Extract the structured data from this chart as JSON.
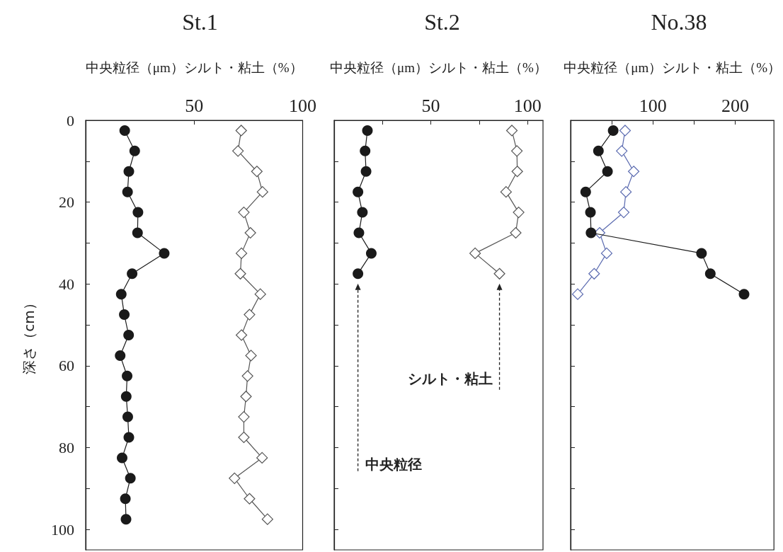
{
  "chart_data": [
    {
      "type": "line",
      "title": "St.1",
      "xlabel": "中央粒径（μm）シルト・粘土（%）",
      "ylabel": "深さ（cm）",
      "xlim": [
        0,
        100
      ],
      "xticks": [
        50,
        100
      ],
      "ylim": [
        105,
        0
      ],
      "yticks": [
        0,
        {
          "value": 10,
          "label": null
        },
        20,
        {
          "value": 30,
          "label": null
        },
        40,
        {
          "value": 50,
          "label": null
        },
        60,
        {
          "value": 70,
          "label": null
        },
        80,
        {
          "value": 90,
          "label": null
        },
        100
      ],
      "grid": false,
      "series": [
        {
          "color": "#1a1a1a",
          "marker": "circle",
          "x": [
            18.0,
            22.6,
            19.9,
            19.3,
            24.1,
            23.9,
            36.2,
            21.4,
            16.4,
            17.8,
            19.8,
            15.9,
            19.1,
            18.7,
            19.4,
            19.9,
            16.8,
            20.6,
            18.3,
            18.6
          ],
          "values": [
            2.5,
            7.5,
            12.5,
            17.5,
            22.5,
            27.5,
            32.5,
            37.5,
            42.5,
            47.5,
            52.5,
            57.5,
            62.5,
            67.5,
            72.5,
            77.5,
            82.5,
            87.5,
            92.5,
            97.5
          ]
        },
        {
          "color": "#555555",
          "marker": "diamond",
          "x": [
            71.7,
            70.2,
            78.9,
            81.5,
            72.9,
            75.9,
            71.8,
            71.3,
            80.5,
            75.5,
            71.8,
            76.2,
            74.6,
            73.9,
            72.9,
            72.9,
            81.3,
            68.6,
            75.5,
            83.8
          ],
          "values": [
            2.5,
            7.5,
            12.5,
            17.5,
            22.5,
            27.5,
            32.5,
            37.5,
            42.5,
            47.5,
            52.5,
            57.5,
            62.5,
            67.5,
            72.5,
            77.5,
            82.5,
            87.5,
            92.5,
            97.5
          ]
        }
      ]
    },
    {
      "type": "line",
      "title": "St.2",
      "xlabel": "中央粒径（μm）シルト・粘土（%）",
      "xlim": [
        0,
        108
      ],
      "xticks": [
        {
          "value": 25,
          "label": null
        },
        50,
        {
          "value": 75,
          "label": null
        },
        100
      ],
      "ylim": [
        105,
        0
      ],
      "yticks": [
        0,
        10,
        20,
        30,
        40,
        50,
        60,
        70,
        80,
        90,
        100
      ],
      "tick_labels": "x",
      "grid": false,
      "annotations": [
        "中央粒径",
        "シルト・粘土"
      ],
      "series": [
        {
          "color": "#1a1a1a",
          "marker": "circle",
          "x": [
            17.2,
            16.0,
            16.5,
            12.3,
            14.6,
            12.8,
            19.2,
            12.3
          ],
          "values": [
            2.5,
            7.5,
            12.5,
            17.5,
            22.5,
            27.5,
            32.5,
            37.5
          ]
        },
        {
          "color": "#555555",
          "marker": "diamond",
          "x": [
            91.9,
            94.5,
            94.7,
            88.9,
            95.4,
            93.9,
            72.9,
            85.5
          ],
          "values": [
            2.5,
            7.5,
            12.5,
            17.5,
            22.5,
            27.5,
            32.5,
            37.5
          ]
        }
      ]
    },
    {
      "type": "line",
      "title": "No.38",
      "xlabel": "中央粒径（μm）シルト・粘土（%）",
      "xlim": [
        0,
        247
      ],
      "xticks": [
        {
          "value": 50,
          "label": null
        },
        100,
        {
          "value": 150,
          "label": null
        },
        200
      ],
      "ylim": [
        105,
        0
      ],
      "yticks": [
        0,
        10,
        20,
        30,
        40,
        50,
        60,
        70,
        80,
        90,
        100
      ],
      "tick_labels": "x",
      "grid": false,
      "series": [
        {
          "color": "#1a1a1a",
          "marker": "circle",
          "x": [
            51.7,
            33.8,
            44.8,
            18.3,
            24.1,
            24.8,
            159.0,
            169.7,
            210.7
          ],
          "values": [
            2.5,
            7.5,
            12.5,
            17.5,
            22.5,
            27.5,
            32.5,
            37.5,
            42.5
          ]
        },
        {
          "color": "#5b6bb0",
          "marker": "diamond",
          "x": [
            66.2,
            62.1,
            76.6,
            67.2,
            64.5,
            35.2,
            43.8,
            28.6,
            8.6
          ],
          "values": [
            2.5,
            7.5,
            12.5,
            17.5,
            22.5,
            27.5,
            32.5,
            37.5,
            42.5
          ]
        }
      ]
    }
  ]
}
